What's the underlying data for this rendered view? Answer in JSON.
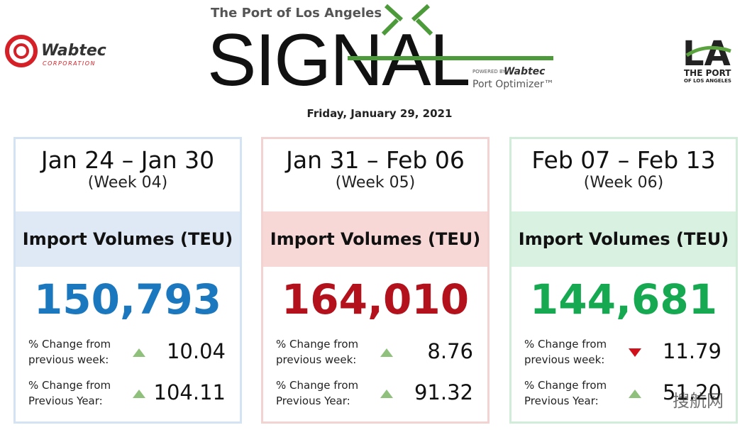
{
  "header": {
    "subtitle": "The Port of Los Angeles",
    "title": "SIGNAL",
    "powered_by": "POWERED BY",
    "powered_brand": "Wabtec",
    "product": "Port Optimizer™",
    "left_logo": {
      "name": "Wabtec",
      "sub": "CORPORATION"
    },
    "right_logo": {
      "mark": "LA",
      "line1": "THE PORT",
      "line2": "OF LOS ANGELES"
    },
    "date": "Friday, January 29, 2021"
  },
  "cards": [
    {
      "range": "Jan 24 – Jan 30",
      "week": "(Week 04)",
      "metric": "Import Volumes (TEU)",
      "value": "150,793",
      "color": "#1b78bf",
      "band": "#dfe9f6",
      "border": "#d3e3f4",
      "rows": [
        {
          "label": [
            "% Change from",
            "previous week:"
          ],
          "trend": "up",
          "value": "10.04"
        },
        {
          "label": [
            "% Change from",
            "Previous Year:"
          ],
          "trend": "up",
          "value": "104.11"
        }
      ]
    },
    {
      "range": "Jan 31 – Feb 06",
      "week": "(Week 05)",
      "metric": "Import Volumes (TEU)",
      "value": "164,010",
      "color": "#b3121c",
      "band": "#f8d8d7",
      "border": "#f3d2d2",
      "rows": [
        {
          "label": [
            "% Change from",
            "previous week:"
          ],
          "trend": "up",
          "value": "8.76"
        },
        {
          "label": [
            "% Change from",
            "Previous Year:"
          ],
          "trend": "up",
          "value": "91.32"
        }
      ]
    },
    {
      "range": "Feb 07 – Feb 13",
      "week": "(Week 06)",
      "metric": "Import Volumes (TEU)",
      "value": "144,681",
      "color": "#16a952",
      "band": "#d9f1e0",
      "border": "#d2ecda",
      "rows": [
        {
          "label": [
            "% Change from",
            "previous week:"
          ],
          "trend": "down",
          "value": "11.79"
        },
        {
          "label": [
            "% Change from",
            "Previous Year:"
          ],
          "trend": "up",
          "value": "51.20"
        }
      ]
    }
  ],
  "watermark": "搜航网"
}
